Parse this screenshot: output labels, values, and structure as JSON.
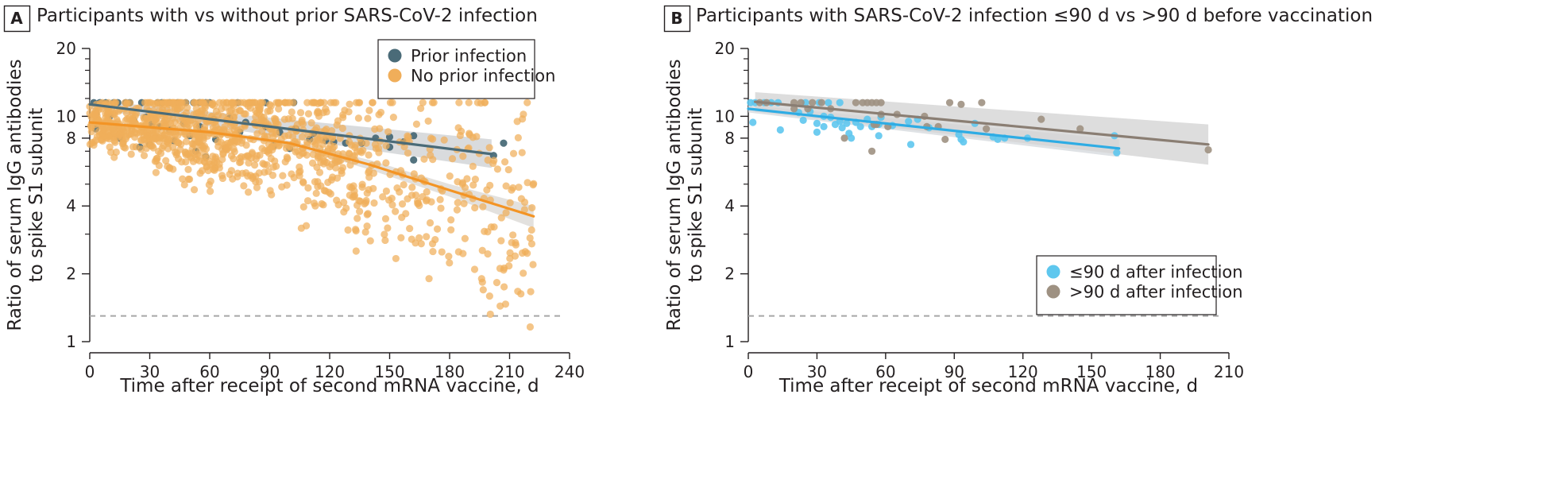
{
  "chart_data": [
    {
      "type": "scatter",
      "panel_label": "A",
      "title": "Participants with vs without prior SARS-CoV-2 infection",
      "xlabel": "Time after receipt of second mRNA vaccine, d",
      "ylabel": [
        "Ratio of serum IgG antibodies",
        "to spike S1 subunit"
      ],
      "xlim": [
        0,
        240
      ],
      "ylim": [
        1,
        20
      ],
      "y_scale": "log",
      "x_ticks": [
        0,
        30,
        60,
        90,
        120,
        150,
        180,
        210,
        240
      ],
      "y_ticks": [
        1,
        2,
        4,
        8,
        10,
        20
      ],
      "reference_line_y": 1.3,
      "legend_position": "top-right",
      "series": [
        {
          "name": "Prior infection",
          "color": "#4a6b78",
          "ci_color": "#cfd2d4",
          "trend": {
            "x": [
              0,
              201
            ],
            "y": [
              11.3,
              6.8
            ]
          },
          "ci_lower": [
            10.8,
            5.9
          ],
          "ci_upper": [
            11.8,
            7.9
          ],
          "points": [
            [
              2,
              11.5
            ],
            [
              5,
              11.5
            ],
            [
              8,
              11.5
            ],
            [
              12,
              11.5
            ],
            [
              14,
              11.5
            ],
            [
              18,
              11.5
            ],
            [
              20,
              11.5
            ],
            [
              26,
              11.5
            ],
            [
              34,
              11.5
            ],
            [
              36,
              11.5
            ],
            [
              40,
              11.5
            ],
            [
              44,
              11.5
            ],
            [
              48,
              11.5
            ],
            [
              52,
              11.5
            ],
            [
              55,
              11.5
            ],
            [
              58,
              11.5
            ],
            [
              60,
              11.5
            ],
            [
              74,
              11.5
            ],
            [
              88,
              11.5
            ],
            [
              102,
              11.5
            ],
            [
              3,
              10.3
            ],
            [
              10,
              10.0
            ],
            [
              22,
              9.6
            ],
            [
              28,
              9.9
            ],
            [
              31,
              9.2
            ],
            [
              35,
              9.0
            ],
            [
              40,
              8.7
            ],
            [
              47,
              9.3
            ],
            [
              55,
              9.0
            ],
            [
              62,
              9.7
            ],
            [
              70,
              9.8
            ],
            [
              78,
              9.4
            ],
            [
              88,
              9.0
            ],
            [
              95,
              8.5
            ],
            [
              103,
              8.8
            ],
            [
              112,
              8.4
            ],
            [
              118,
              7.8
            ],
            [
              128,
              7.6
            ],
            [
              143,
              8.0
            ],
            [
              150,
              8.1
            ],
            [
              157,
              7.7
            ],
            [
              162,
              8.2
            ],
            [
              3,
              8.8
            ],
            [
              15,
              8.0
            ],
            [
              25,
              7.3
            ],
            [
              30,
              7.5
            ],
            [
              42,
              7.8
            ],
            [
              50,
              8.2
            ],
            [
              53,
              7.0
            ],
            [
              58,
              6.6
            ],
            [
              63,
              7.9
            ],
            [
              68,
              7.2
            ],
            [
              75,
              8.5
            ],
            [
              92,
              7.4
            ],
            [
              100,
              7.2
            ],
            [
              110,
              7.9
            ],
            [
              122,
              7.7
            ],
            [
              136,
              7.6
            ],
            [
              150,
              7.3
            ],
            [
              162,
              6.4
            ],
            [
              202,
              6.7
            ],
            [
              207,
              7.6
            ]
          ]
        },
        {
          "name": "No prior infection",
          "color": "#f0ae5a",
          "trend_color": "#f39425",
          "ci_color": "#dcd9d6",
          "trend": {
            "x": [
              0,
              60,
              100,
              140,
              180,
              222
            ],
            "y": [
              9.4,
              8.5,
              7.6,
              6.1,
              4.7,
              3.6
            ]
          },
          "ci_lower": [
            9.2,
            8.3,
            7.4,
            5.8,
            4.4,
            3.2
          ],
          "ci_upper": [
            9.6,
            8.7,
            7.8,
            6.4,
            5.0,
            4.0
          ],
          "generated_points": {
            "count": 1150,
            "seed": 11,
            "x_max": 222,
            "saturation_value": 11.5
          }
        }
      ]
    },
    {
      "type": "scatter",
      "panel_label": "B",
      "title": "Participants with SARS-CoV-2 infection ≤90 d vs >90 d before vaccination",
      "xlabel": "Time after receipt of second mRNA vaccine, d",
      "ylabel": [
        "Ratio of serum IgG antibodies",
        "to spike S1 subunit"
      ],
      "xlim": [
        0,
        210
      ],
      "ylim": [
        1,
        20
      ],
      "y_scale": "log",
      "x_ticks": [
        0,
        30,
        60,
        90,
        120,
        150,
        180,
        210
      ],
      "y_ticks": [
        1,
        2,
        4,
        8,
        10,
        20
      ],
      "reference_line_y": 1.3,
      "legend_position": "bottom-right",
      "series": [
        {
          "name": "≤90 d after infection",
          "color": "#5ec7ee",
          "trend_color": "#2eace4",
          "ci_color": "#d7dbde",
          "trend": {
            "x": [
              0,
              162
            ],
            "y": [
              10.8,
              7.2
            ]
          },
          "ci_lower": [
            10.4,
            6.6
          ],
          "ci_upper": [
            11.2,
            7.9
          ],
          "points": [
            [
              1,
              11.5
            ],
            [
              3,
              11.5
            ],
            [
              7,
              11.5
            ],
            [
              10,
              11.5
            ],
            [
              13,
              11.5
            ],
            [
              25,
              11.5
            ],
            [
              31,
              11.5
            ],
            [
              35,
              11.5
            ],
            [
              40,
              11.5
            ],
            [
              2,
              9.4
            ],
            [
              14,
              8.7
            ],
            [
              22,
              10.4
            ],
            [
              24,
              9.6
            ],
            [
              27,
              10.5
            ],
            [
              30,
              9.3
            ],
            [
              30,
              8.5
            ],
            [
              33,
              10.0
            ],
            [
              33,
              9.0
            ],
            [
              36,
              9.9
            ],
            [
              38,
              9.2
            ],
            [
              40,
              9.5
            ],
            [
              41,
              8.9
            ],
            [
              43,
              9.3
            ],
            [
              44,
              8.4
            ],
            [
              45,
              8.0
            ],
            [
              47,
              9.4
            ],
            [
              49,
              9.0
            ],
            [
              52,
              9.7
            ],
            [
              54,
              9.0
            ],
            [
              57,
              9.2
            ],
            [
              57,
              8.2
            ],
            [
              58,
              9.9
            ],
            [
              63,
              9.1
            ],
            [
              70,
              9.5
            ],
            [
              71,
              7.5
            ],
            [
              74,
              9.7
            ],
            [
              79,
              8.9
            ],
            [
              92,
              8.3
            ],
            [
              93,
              7.9
            ],
            [
              94,
              7.7
            ],
            [
              99,
              9.3
            ],
            [
              107,
              8.1
            ],
            [
              109,
              7.9
            ],
            [
              112,
              8.0
            ],
            [
              122,
              8.0
            ],
            [
              160,
              8.2
            ],
            [
              161,
              6.9
            ]
          ]
        },
        {
          "name": ">90 d after infection",
          "color": "#9e9182",
          "trend_color": "#8a7e73",
          "ci_color": "#d4d4d4",
          "trend": {
            "x": [
              3,
              201
            ],
            "y": [
              11.6,
              7.5
            ]
          },
          "ci_lower": [
            10.5,
            6.1
          ],
          "ci_upper": [
            12.8,
            9.2
          ],
          "points": [
            [
              5,
              11.5
            ],
            [
              8,
              11.5
            ],
            [
              20,
              11.5
            ],
            [
              23,
              11.5
            ],
            [
              28,
              11.5
            ],
            [
              32,
              11.5
            ],
            [
              47,
              11.5
            ],
            [
              50,
              11.5
            ],
            [
              52,
              11.5
            ],
            [
              54,
              11.5
            ],
            [
              56,
              11.5
            ],
            [
              58,
              11.5
            ],
            [
              88,
              11.5
            ],
            [
              93,
              11.3
            ],
            [
              102,
              11.5
            ],
            [
              20,
              10.8
            ],
            [
              26,
              10.8
            ],
            [
              36,
              10.8
            ],
            [
              58,
              10.2
            ],
            [
              65,
              10.2
            ],
            [
              77,
              10.0
            ],
            [
              128,
              9.7
            ],
            [
              55,
              9.2
            ],
            [
              56,
              9.2
            ],
            [
              61,
              9.0
            ],
            [
              83,
              9.0
            ],
            [
              104,
              8.8
            ],
            [
              78,
              9.0
            ],
            [
              86,
              7.9
            ],
            [
              42,
              8.0
            ],
            [
              54,
              7.0
            ],
            [
              145,
              8.8
            ],
            [
              201,
              7.1
            ]
          ]
        }
      ]
    }
  ]
}
